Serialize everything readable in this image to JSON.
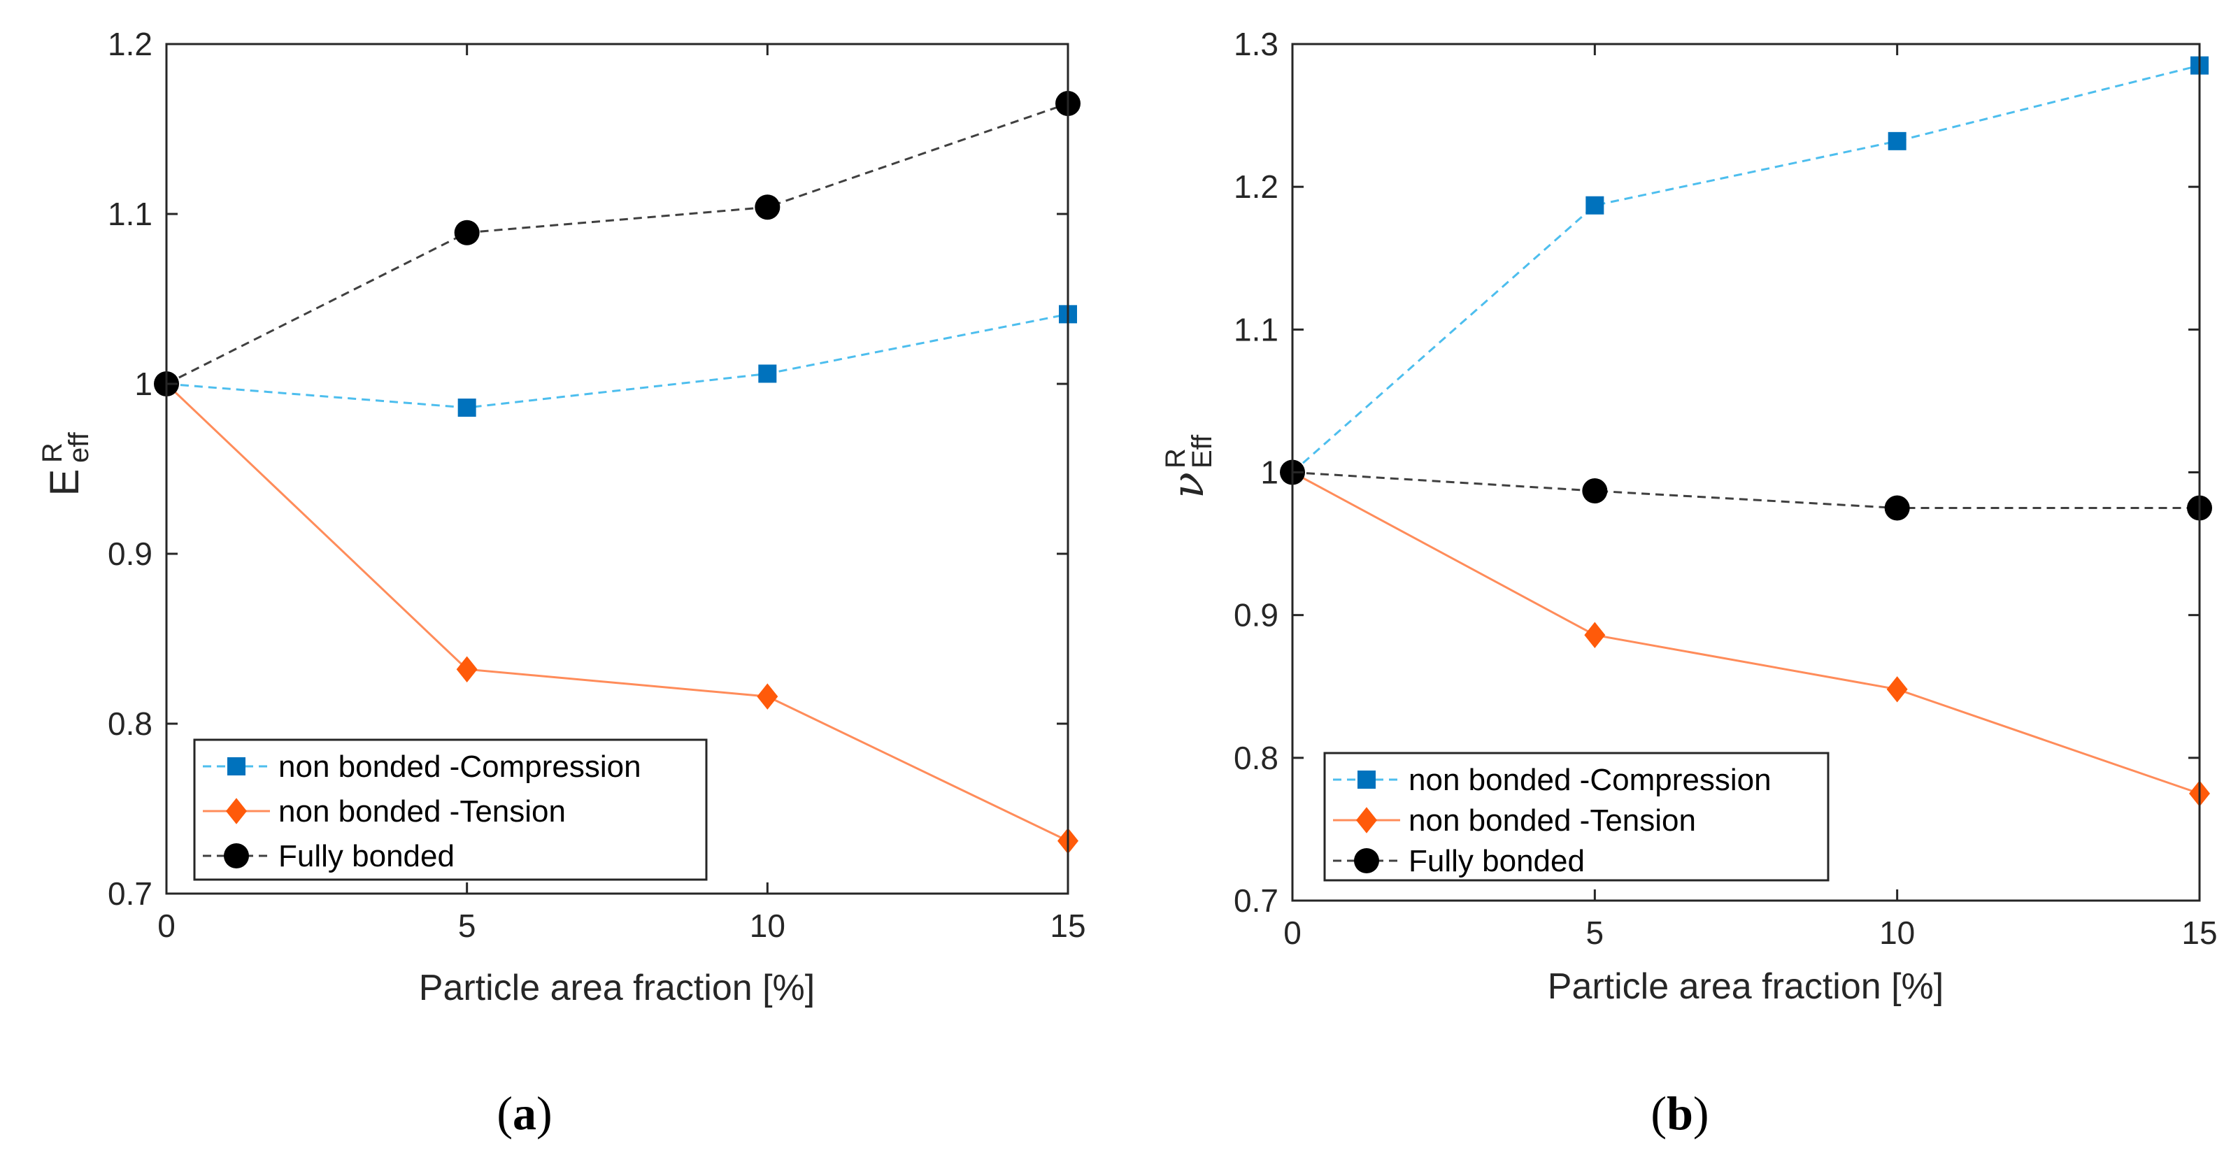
{
  "chart_data": [
    {
      "panel": "a",
      "type": "line",
      "caption_letter": "a",
      "xlabel": "Particle area fraction [%]",
      "ylabel_main": "E",
      "ylabel_sup": "R",
      "ylabel_sub": "eff",
      "x": [
        0,
        5,
        10,
        15
      ],
      "xlim": [
        0,
        15
      ],
      "ylim": [
        0.7,
        1.2
      ],
      "xticks": [
        "0",
        "5",
        "10",
        "15"
      ],
      "yticks": [
        "0.7",
        "0.8",
        "0.9",
        "1",
        "1.1",
        "1.2"
      ],
      "legend_position": "bottom-left",
      "series": [
        {
          "name": "non bonded -Compression",
          "values": [
            1.0,
            0.986,
            1.006,
            1.041
          ],
          "color": "#0072BD",
          "line": "#4DBEEE",
          "marker": "square",
          "dash": true
        },
        {
          "name": "non bonded -Tension",
          "values": [
            1.0,
            0.832,
            0.816,
            0.731
          ],
          "color": "#FF5A0A",
          "line": "#FF8C5A",
          "marker": "diamond",
          "dash": false
        },
        {
          "name": "Fully bonded",
          "values": [
            1.0,
            1.089,
            1.104,
            1.165
          ],
          "color": "#000000",
          "line": "#404040",
          "marker": "circle",
          "dash": true
        }
      ]
    },
    {
      "panel": "b",
      "type": "line",
      "caption_letter": "b",
      "xlabel": "Particle area fraction [%]",
      "ylabel_main": "ν",
      "ylabel_sup": "R",
      "ylabel_sub": "Eff",
      "x": [
        0,
        5,
        10,
        15
      ],
      "xlim": [
        0,
        15
      ],
      "ylim": [
        0.7,
        1.3
      ],
      "xticks": [
        "0",
        "5",
        "10",
        "15"
      ],
      "yticks": [
        "0.7",
        "0.8",
        "0.9",
        "1",
        "1.1",
        "1.2",
        "1.3"
      ],
      "legend_position": "bottom-left",
      "series": [
        {
          "name": "non bonded -Compression",
          "values": [
            1.0,
            1.187,
            1.232,
            1.285
          ],
          "color": "#0072BD",
          "line": "#4DBEEE",
          "marker": "square",
          "dash": true
        },
        {
          "name": "non bonded -Tension",
          "values": [
            1.0,
            0.886,
            0.848,
            0.775
          ],
          "color": "#FF5A0A",
          "line": "#FF8C5A",
          "marker": "diamond",
          "dash": false
        },
        {
          "name": "Fully bonded",
          "values": [
            1.0,
            0.987,
            0.975,
            0.975
          ],
          "color": "#000000",
          "line": "#404040",
          "marker": "circle",
          "dash": true
        }
      ]
    }
  ]
}
